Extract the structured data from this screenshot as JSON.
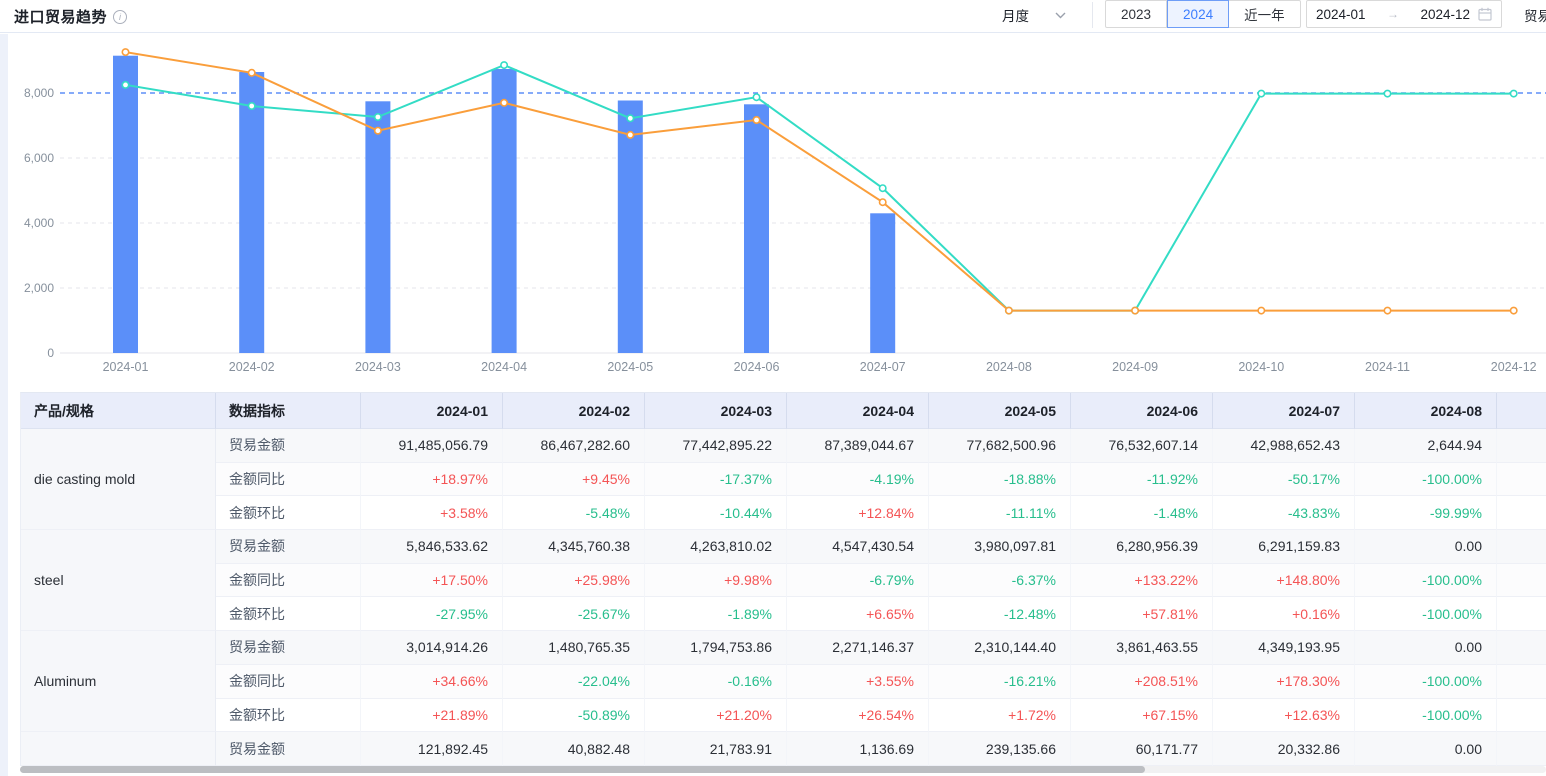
{
  "header": {
    "title": "进口贸易趋势",
    "period_select": "月度",
    "year_buttons": [
      "2023",
      "2024",
      "近一年"
    ],
    "year_selected": "2024",
    "date_start": "2024-01",
    "date_end": "2024-12",
    "trailing_label": "贸易"
  },
  "chart_data": {
    "type": "bar",
    "x": [
      "2024-01",
      "2024-02",
      "2024-03",
      "2024-04",
      "2024-05",
      "2024-06",
      "2024-07",
      "2024-08",
      "2024-09",
      "2024-10",
      "2024-11",
      "2024-12"
    ],
    "y_tick_values": [
      0,
      2000,
      4000,
      6000,
      8000
    ],
    "y_tick_labels": [
      "0",
      "2,000",
      "4,000",
      "6,000",
      "8,000"
    ],
    "ylim": [
      0,
      9800
    ],
    "grid": "dashed",
    "legend_position": "none",
    "reference_line": {
      "value": 8000,
      "color": "#5F8FF7"
    },
    "series": [
      {
        "name": "bars",
        "type": "bar",
        "color": "#5B8FF9",
        "values": [
          9148,
          8647,
          7744,
          8739,
          7768,
          7653,
          4299,
          null,
          null,
          null,
          null,
          null
        ]
      },
      {
        "name": "line-orange",
        "type": "line",
        "color": "#FA9E3B",
        "values": [
          9260,
          8620,
          6840,
          7700,
          6710,
          7170,
          4640,
          1305,
          1305,
          1305,
          1305,
          1305
        ]
      },
      {
        "name": "line-teal",
        "type": "line",
        "color": "#33DCC5",
        "values": [
          8250,
          7600,
          7260,
          8860,
          7220,
          7870,
          5070,
          1305,
          1305,
          7980,
          7980,
          7980
        ]
      }
    ]
  },
  "table": {
    "product_col": "产品/规格",
    "metric_col": "数据指标",
    "months": [
      "2024-01",
      "2024-02",
      "2024-03",
      "2024-04",
      "2024-05",
      "2024-06",
      "2024-07",
      "2024-08"
    ],
    "products": [
      {
        "name": "die casting mold",
        "rows": [
          {
            "label": "贸易金额",
            "values": [
              "91,485,056.79",
              "86,467,282.60",
              "77,442,895.22",
              "87,389,044.67",
              "77,682,500.96",
              "76,532,607.14",
              "42,988,652.43",
              "2,644.94"
            ]
          },
          {
            "label": "金额同比",
            "values": [
              "+18.97%",
              "+9.45%",
              "-17.37%",
              "-4.19%",
              "-18.88%",
              "-11.92%",
              "-50.17%",
              "-100.00%"
            ]
          },
          {
            "label": "金额环比",
            "values": [
              "+3.58%",
              "-5.48%",
              "-10.44%",
              "+12.84%",
              "-11.11%",
              "-1.48%",
              "-43.83%",
              "-99.99%"
            ]
          }
        ]
      },
      {
        "name": "steel",
        "rows": [
          {
            "label": "贸易金额",
            "values": [
              "5,846,533.62",
              "4,345,760.38",
              "4,263,810.02",
              "4,547,430.54",
              "3,980,097.81",
              "6,280,956.39",
              "6,291,159.83",
              "0.00"
            ]
          },
          {
            "label": "金额同比",
            "values": [
              "+17.50%",
              "+25.98%",
              "+9.98%",
              "-6.79%",
              "-6.37%",
              "+133.22%",
              "+148.80%",
              "-100.00%"
            ]
          },
          {
            "label": "金额环比",
            "values": [
              "-27.95%",
              "-25.67%",
              "-1.89%",
              "+6.65%",
              "-12.48%",
              "+57.81%",
              "+0.16%",
              "-100.00%"
            ]
          }
        ]
      },
      {
        "name": "Aluminum",
        "rows": [
          {
            "label": "贸易金额",
            "values": [
              "3,014,914.26",
              "1,480,765.35",
              "1,794,753.86",
              "2,271,146.37",
              "2,310,144.40",
              "3,861,463.55",
              "4,349,193.95",
              "0.00"
            ]
          },
          {
            "label": "金额同比",
            "values": [
              "+34.66%",
              "-22.04%",
              "-0.16%",
              "+3.55%",
              "-16.21%",
              "+208.51%",
              "+178.30%",
              "-100.00%"
            ]
          },
          {
            "label": "金额环比",
            "values": [
              "+21.89%",
              "-50.89%",
              "+21.20%",
              "+26.54%",
              "+1.72%",
              "+67.15%",
              "+12.63%",
              "-100.00%"
            ]
          }
        ]
      },
      {
        "name": "",
        "rows": [
          {
            "label": "贸易金额",
            "values": [
              "121,892.45",
              "40,882.48",
              "21,783.91",
              "1,136.69",
              "239,135.66",
              "60,171.77",
              "20,332.86",
              "0.00"
            ]
          }
        ]
      }
    ]
  },
  "colors": {
    "positive": "#F45455",
    "negative": "#27BE8D",
    "bar": "#5B8FF9",
    "line_orange": "#FA9E3B",
    "line_teal": "#33DCC5",
    "table_header_bg": "#E9EDFA",
    "accent_blue": "#3D7FFF"
  }
}
